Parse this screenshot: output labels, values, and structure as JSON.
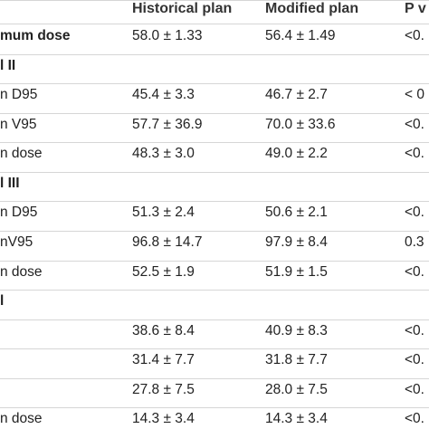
{
  "header": {
    "historical": "Historical plan",
    "modified": "Modified plan",
    "p": "P v"
  },
  "rows": [
    {
      "kind": "data",
      "bold": true,
      "label": "mum dose",
      "historical": "58.0 ± 1.33",
      "modified": "56.4 ± 1.49",
      "p": "<0."
    },
    {
      "kind": "section",
      "label": "l II"
    },
    {
      "kind": "data",
      "label": "n D95",
      "historical": "45.4 ± 3.3",
      "modified": "46.7 ± 2.7",
      "p": "< 0"
    },
    {
      "kind": "data",
      "label": "n V95",
      "historical": "57.7 ± 36.9",
      "modified": "70.0 ± 33.6",
      "p": "<0."
    },
    {
      "kind": "data",
      "label": "n dose",
      "historical": "48.3 ± 3.0",
      "modified": "49.0 ± 2.2",
      "p": "<0."
    },
    {
      "kind": "section",
      "label": "l III"
    },
    {
      "kind": "data",
      "label": "n D95",
      "historical": "51.3 ± 2.4",
      "modified": "50.6 ± 2.1",
      "p": "<0."
    },
    {
      "kind": "data",
      "label": "nV95",
      "historical": "96.8 ± 14.7",
      "modified": "97.9 ± 8.4",
      "p": "0.3"
    },
    {
      "kind": "data",
      "label": "n dose",
      "historical": "52.5 ± 1.9",
      "modified": "51.9 ± 1.5",
      "p": "<0."
    },
    {
      "kind": "section",
      "label": "l"
    },
    {
      "kind": "data",
      "label": "",
      "historical": "38.6 ± 8.4",
      "modified": "40.9 ± 8.3",
      "p": "<0."
    },
    {
      "kind": "data",
      "label": "",
      "historical": "31.4 ± 7.7",
      "modified": "31.8 ± 7.7",
      "p": "<0."
    },
    {
      "kind": "data",
      "label": "",
      "historical": "27.8 ± 7.5",
      "modified": "28.0 ± 7.5",
      "p": "<0."
    },
    {
      "kind": "data",
      "label": "n dose",
      "historical": "14.3 ± 3.4",
      "modified": "14.3 ± 3.4",
      "p": "<0."
    }
  ]
}
